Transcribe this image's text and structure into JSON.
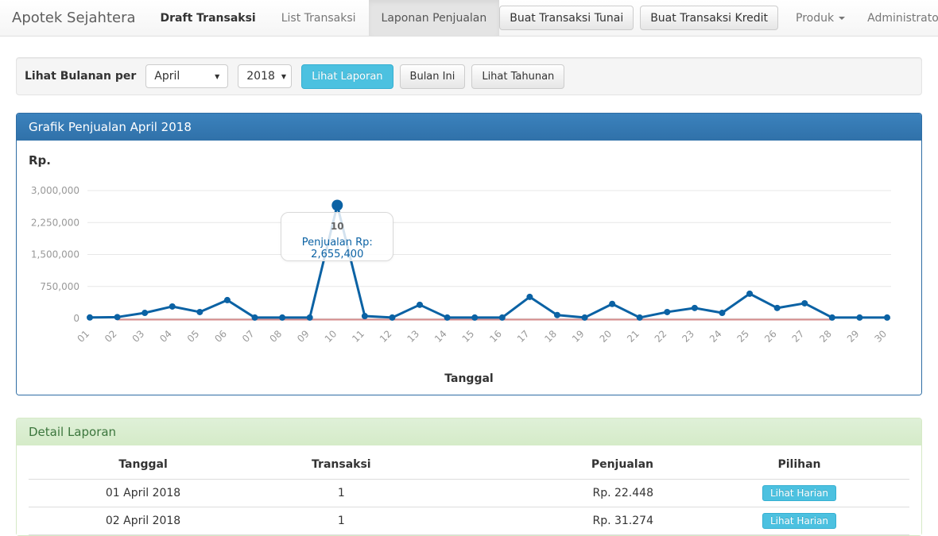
{
  "navbar": {
    "brand": "Apotek Sejahtera",
    "items": [
      {
        "label": "Draft Transaksi",
        "active": false,
        "emphasis": true
      },
      {
        "label": "List Transaksi",
        "active": false,
        "emphasis": false
      },
      {
        "label": "Laponan Penjualan",
        "active": true,
        "emphasis": false
      }
    ],
    "buttons": [
      "Buat Transaksi Tunai",
      "Buat Transaksi Kredit"
    ],
    "dropdowns": [
      "Produk",
      "Administrator"
    ]
  },
  "filter": {
    "label": "Lihat Bulanan per",
    "month_select": {
      "value": "April"
    },
    "year_select": {
      "value": "2018"
    },
    "buttons": [
      {
        "label": "Lihat Laporan",
        "style": "info"
      },
      {
        "label": "Bulan Ini",
        "style": "default"
      },
      {
        "label": "Lihat Tahunan",
        "style": "default"
      }
    ]
  },
  "chart_panel": {
    "title": "Grafik Penjualan April 2018",
    "y_unit": "Rp.",
    "x_axis_title": "Tanggal"
  },
  "chart_data": {
    "type": "line",
    "title": "Grafik Penjualan April 2018",
    "xlabel": "Tanggal",
    "ylabel": "Rp.",
    "x": [
      "01",
      "02",
      "03",
      "04",
      "05",
      "06",
      "07",
      "08",
      "09",
      "10",
      "11",
      "12",
      "13",
      "14",
      "15",
      "16",
      "17",
      "18",
      "19",
      "20",
      "21",
      "22",
      "23",
      "24",
      "25",
      "26",
      "27",
      "28",
      "29",
      "30"
    ],
    "series": [
      {
        "name": "Penjualan",
        "color": "#0b62a4",
        "values": [
          22448,
          31274,
          130000,
          280000,
          150000,
          430000,
          20000,
          20000,
          20000,
          2655400,
          55000,
          20000,
          320000,
          20000,
          20000,
          20000,
          505000,
          80000,
          20000,
          340000,
          20000,
          150000,
          245000,
          130000,
          580000,
          245000,
          355000,
          20000,
          20000,
          20000
        ]
      }
    ],
    "baseline": {
      "name": "zero-line",
      "color": "#d48a8a",
      "value": 0,
      "start_index": 1,
      "end_index": 27
    },
    "ylim": [
      0,
      3000000
    ],
    "y_axis": {
      "ticks": [
        {
          "value": 3000000,
          "label": "3,000,000"
        },
        {
          "value": 2250000,
          "label": "2,250,000"
        },
        {
          "value": 1500000,
          "label": "1,500,000"
        },
        {
          "value": 750000,
          "label": "750,000"
        },
        {
          "value": 0,
          "label": "0"
        }
      ]
    },
    "grid": true,
    "legend": "none",
    "tooltip": {
      "point_index": 9,
      "day_label": "10",
      "text": "Penjualan Rp: 2,655,400"
    }
  },
  "detail_panel": {
    "title": "Detail Laporan",
    "table": {
      "headers": [
        "Tanggal",
        "Transaksi",
        "Penjualan",
        "Pilihan"
      ],
      "rows": [
        {
          "tanggal": "01 April 2018",
          "transaksi": "1",
          "penjualan": "Rp. 22.448",
          "action": "Lihat Harian"
        },
        {
          "tanggal": "02 April 2018",
          "transaksi": "1",
          "penjualan": "Rp. 31.274",
          "action": "Lihat Harian"
        }
      ]
    }
  },
  "colors": {
    "primary_panel_header": "#337ab7",
    "success_panel_header_bg": "#dff0d8",
    "success_panel_header_text": "#3c763d",
    "info_button": "#4cc1e0",
    "chart_line": "#0b62a4",
    "chart_baseline": "#d48a8a",
    "gridline": "#e7e7e7"
  }
}
